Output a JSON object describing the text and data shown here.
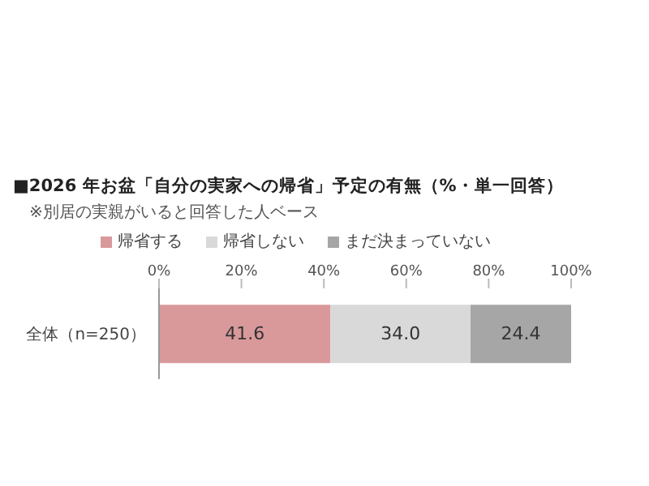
{
  "chart_data": {
    "type": "bar",
    "orientation": "horizontal",
    "stacked": true,
    "title": "■2026 年お盆「自分の実家への帰省」予定の有無（%・単一回答）",
    "annotations": [
      "※別居の実親がいると回答した人ベース"
    ],
    "categories": [
      "全体（n=250）"
    ],
    "series": [
      {
        "name": "帰省する",
        "color": "#d9999b",
        "values": [
          41.6
        ],
        "value_labels": [
          "41.6"
        ]
      },
      {
        "name": "帰省しない",
        "color": "#d9d9d9",
        "values": [
          34.0
        ],
        "value_labels": [
          "34.0"
        ]
      },
      {
        "name": "まだ決まっていない",
        "color": "#a6a6a6",
        "values": [
          24.4
        ],
        "value_labels": [
          "24.4"
        ]
      }
    ],
    "xlim": [
      0,
      100
    ],
    "xticks": [
      {
        "value": 0,
        "label": "0%"
      },
      {
        "value": 20,
        "label": "20%"
      },
      {
        "value": 40,
        "label": "40%"
      },
      {
        "value": 60,
        "label": "60%"
      },
      {
        "value": 80,
        "label": "80%"
      },
      {
        "value": 100,
        "label": "100%"
      }
    ],
    "legend": "top",
    "grid": false
  }
}
